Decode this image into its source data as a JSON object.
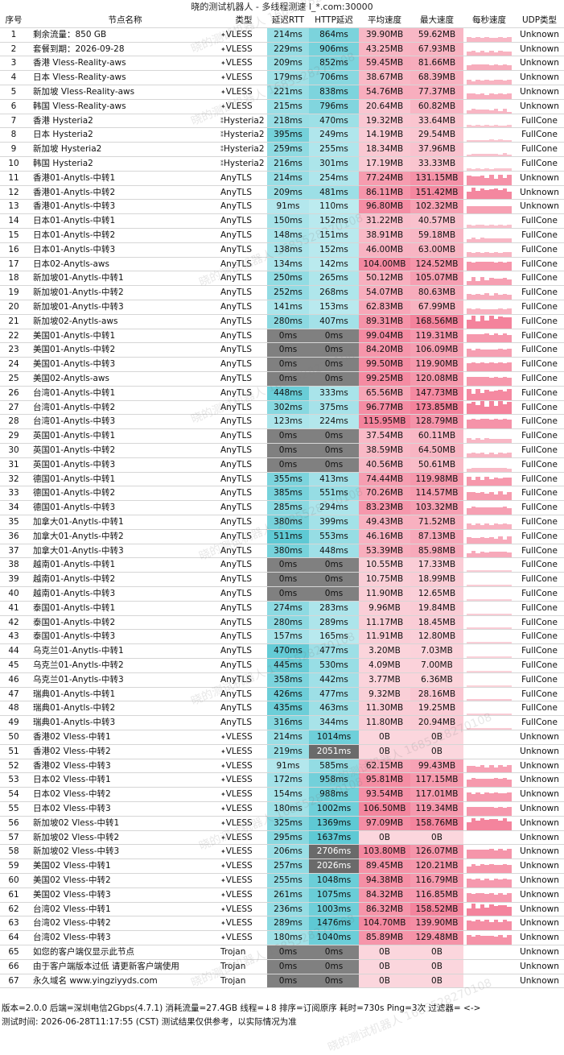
{
  "title": "晓的测试机器人 - 多线程测速 l_*.com:30000",
  "headers": [
    "序号",
    "节点名称",
    "类型",
    "延迟RTT",
    "HTTP延迟",
    "平均速度",
    "最大速度",
    "每秒速度",
    "UDP类型"
  ],
  "rows": [
    [
      "1",
      "剩余流量：850 GB",
      "VLESS",
      "214ms",
      "864ms",
      "39.90MB",
      "59.62MB",
      "Unknown"
    ],
    [
      "2",
      "套餐到期：2026-09-28",
      "VLESS",
      "229ms",
      "906ms",
      "43.25MB",
      "67.93MB",
      "Unknown"
    ],
    [
      "3",
      "香港 Vless-Reality-aws",
      "VLESS",
      "209ms",
      "852ms",
      "59.45MB",
      "81.66MB",
      "Unknown"
    ],
    [
      "4",
      "日本 Vless-Reality-aws",
      "VLESS",
      "179ms",
      "706ms",
      "38.67MB",
      "68.39MB",
      "Unknown"
    ],
    [
      "5",
      "新加坡 Vless-Reality-aws",
      "VLESS",
      "221ms",
      "838ms",
      "54.76MB",
      "77.37MB",
      "Unknown"
    ],
    [
      "6",
      "韩国 Vless-Reality-aws",
      "VLESS",
      "215ms",
      "796ms",
      "20.64MB",
      "60.82MB",
      "Unknown"
    ],
    [
      "7",
      "香港 Hysteria2",
      "Hysteria2",
      "218ms",
      "470ms",
      "19.32MB",
      "33.64MB",
      "FullCone"
    ],
    [
      "8",
      "日本 Hysteria2",
      "Hysteria2",
      "395ms",
      "249ms",
      "14.19MB",
      "29.54MB",
      "FullCone"
    ],
    [
      "9",
      "新加坡 Hysteria2",
      "Hysteria2",
      "259ms",
      "255ms",
      "18.34MB",
      "37.96MB",
      "FullCone"
    ],
    [
      "10",
      "韩国 Hysteria2",
      "Hysteria2",
      "216ms",
      "301ms",
      "17.19MB",
      "33.33MB",
      "FullCone"
    ],
    [
      "11",
      "香港01-Anytls-中转1",
      "AnyTLS",
      "214ms",
      "254ms",
      "77.24MB",
      "131.15MB",
      "Unknown"
    ],
    [
      "12",
      "香港01-Anytls-中转2",
      "AnyTLS",
      "209ms",
      "481ms",
      "86.11MB",
      "151.42MB",
      "Unknown"
    ],
    [
      "13",
      "香港01-Anytls-中转3",
      "AnyTLS",
      "91ms",
      "110ms",
      "96.80MB",
      "102.32MB",
      "Unknown"
    ],
    [
      "14",
      "日本01-Anytls-中转1",
      "AnyTLS",
      "150ms",
      "152ms",
      "31.22MB",
      "40.57MB",
      "FullCone"
    ],
    [
      "15",
      "日本01-Anytls-中转2",
      "AnyTLS",
      "148ms",
      "151ms",
      "38.91MB",
      "59.18MB",
      "FullCone"
    ],
    [
      "16",
      "日本01-Anytls-中转3",
      "AnyTLS",
      "138ms",
      "152ms",
      "46.00MB",
      "63.00MB",
      "FullCone"
    ],
    [
      "17",
      "日本02-Anytls-aws",
      "AnyTLS",
      "134ms",
      "142ms",
      "104.00MB",
      "124.52MB",
      "FullCone"
    ],
    [
      "18",
      "新加坡01-Anytls-中转1",
      "AnyTLS",
      "250ms",
      "265ms",
      "50.12MB",
      "105.07MB",
      "FullCone"
    ],
    [
      "19",
      "新加坡01-Anytls-中转2",
      "AnyTLS",
      "252ms",
      "268ms",
      "54.07MB",
      "80.63MB",
      "FullCone"
    ],
    [
      "20",
      "新加坡01-Anytls-中转3",
      "AnyTLS",
      "141ms",
      "153ms",
      "62.83MB",
      "67.99MB",
      "FullCone"
    ],
    [
      "21",
      "新加坡02-Anytls-aws",
      "AnyTLS",
      "280ms",
      "407ms",
      "89.31MB",
      "168.56MB",
      "FullCone"
    ],
    [
      "22",
      "美国01-Anytls-中转1",
      "AnyTLS",
      "0ms",
      "0ms",
      "99.04MB",
      "119.31MB",
      "FullCone"
    ],
    [
      "23",
      "美国01-Anytls-中转2",
      "AnyTLS",
      "0ms",
      "0ms",
      "84.20MB",
      "106.09MB",
      "FullCone"
    ],
    [
      "24",
      "美国01-Anytls-中转3",
      "AnyTLS",
      "0ms",
      "0ms",
      "99.50MB",
      "119.90MB",
      "FullCone"
    ],
    [
      "25",
      "美国02-Anytls-aws",
      "AnyTLS",
      "0ms",
      "0ms",
      "99.25MB",
      "120.08MB",
      "FullCone"
    ],
    [
      "26",
      "台湾01-Anytls-中转1",
      "AnyTLS",
      "448ms",
      "333ms",
      "65.56MB",
      "147.73MB",
      "FullCone"
    ],
    [
      "27",
      "台湾01-Anytls-中转2",
      "AnyTLS",
      "302ms",
      "375ms",
      "96.77MB",
      "173.85MB",
      "FullCone"
    ],
    [
      "28",
      "台湾01-Anytls-中转3",
      "AnyTLS",
      "123ms",
      "224ms",
      "115.95MB",
      "128.79MB",
      "FullCone"
    ],
    [
      "29",
      "英国01-Anytls-中转1",
      "AnyTLS",
      "0ms",
      "0ms",
      "37.54MB",
      "60.11MB",
      "FullCone"
    ],
    [
      "30",
      "英国01-Anytls-中转2",
      "AnyTLS",
      "0ms",
      "0ms",
      "38.59MB",
      "64.50MB",
      "FullCone"
    ],
    [
      "31",
      "英国01-Anytls-中转3",
      "AnyTLS",
      "0ms",
      "0ms",
      "40.56MB",
      "50.61MB",
      "FullCone"
    ],
    [
      "32",
      "德国01-Anytls-中转1",
      "AnyTLS",
      "355ms",
      "413ms",
      "74.44MB",
      "119.98MB",
      "FullCone"
    ],
    [
      "33",
      "德国01-Anytls-中转2",
      "AnyTLS",
      "385ms",
      "551ms",
      "70.26MB",
      "114.57MB",
      "FullCone"
    ],
    [
      "34",
      "德国01-Anytls-中转3",
      "AnyTLS",
      "285ms",
      "294ms",
      "83.23MB",
      "103.32MB",
      "FullCone"
    ],
    [
      "35",
      "加拿大01-Anytls-中转1",
      "AnyTLS",
      "380ms",
      "399ms",
      "49.43MB",
      "71.52MB",
      "FullCone"
    ],
    [
      "36",
      "加拿大01-Anytls-中转2",
      "AnyTLS",
      "511ms",
      "553ms",
      "46.16MB",
      "87.13MB",
      "FullCone"
    ],
    [
      "37",
      "加拿大01-Anytls-中转3",
      "AnyTLS",
      "380ms",
      "448ms",
      "53.39MB",
      "85.98MB",
      "FullCone"
    ],
    [
      "38",
      "越南01-Anytls-中转1",
      "AnyTLS",
      "0ms",
      "0ms",
      "10.55MB",
      "17.33MB",
      "FullCone"
    ],
    [
      "39",
      "越南01-Anytls-中转2",
      "AnyTLS",
      "0ms",
      "0ms",
      "10.75MB",
      "18.99MB",
      "FullCone"
    ],
    [
      "40",
      "越南01-Anytls-中转3",
      "AnyTLS",
      "0ms",
      "0ms",
      "11.90MB",
      "12.65MB",
      "FullCone"
    ],
    [
      "41",
      "泰国01-Anytls-中转1",
      "AnyTLS",
      "274ms",
      "283ms",
      "9.96MB",
      "19.84MB",
      "FullCone"
    ],
    [
      "42",
      "泰国01-Anytls-中转2",
      "AnyTLS",
      "280ms",
      "289ms",
      "11.17MB",
      "18.45MB",
      "FullCone"
    ],
    [
      "43",
      "泰国01-Anytls-中转3",
      "AnyTLS",
      "157ms",
      "165ms",
      "11.91MB",
      "12.80MB",
      "FullCone"
    ],
    [
      "44",
      "乌克兰01-Anytls-中转1",
      "AnyTLS",
      "470ms",
      "477ms",
      "3.20MB",
      "7.03MB",
      "FullCone"
    ],
    [
      "45",
      "乌克兰01-Anytls-中转2",
      "AnyTLS",
      "445ms",
      "530ms",
      "4.09MB",
      "7.00MB",
      "FullCone"
    ],
    [
      "46",
      "乌克兰01-Anytls-中转3",
      "AnyTLS",
      "358ms",
      "442ms",
      "3.77MB",
      "6.36MB",
      "FullCone"
    ],
    [
      "47",
      "瑞典01-Anytls-中转1",
      "AnyTLS",
      "426ms",
      "477ms",
      "9.32MB",
      "28.16MB",
      "FullCone"
    ],
    [
      "48",
      "瑞典01-Anytls-中转2",
      "AnyTLS",
      "435ms",
      "463ms",
      "11.30MB",
      "19.25MB",
      "FullCone"
    ],
    [
      "49",
      "瑞典01-Anytls-中转3",
      "AnyTLS",
      "316ms",
      "344ms",
      "11.80MB",
      "20.94MB",
      "FullCone"
    ],
    [
      "50",
      "香港02 Vless-中转1",
      "VLESS",
      "214ms",
      "1014ms",
      "0B",
      "0B",
      "Unknown"
    ],
    [
      "51",
      "香港02 Vless-中转2",
      "VLESS",
      "219ms",
      "2051ms",
      "0B",
      "0B",
      "Unknown"
    ],
    [
      "52",
      "香港02 Vless-中转3",
      "VLESS",
      "91ms",
      "585ms",
      "62.15MB",
      "99.43MB",
      "Unknown"
    ],
    [
      "53",
      "日本02 Vless-中转1",
      "VLESS",
      "172ms",
      "958ms",
      "95.81MB",
      "117.15MB",
      "Unknown"
    ],
    [
      "54",
      "日本02 Vless-中转2",
      "VLESS",
      "154ms",
      "988ms",
      "93.54MB",
      "117.01MB",
      "Unknown"
    ],
    [
      "55",
      "日本02 Vless-中转3",
      "VLESS",
      "180ms",
      "1002ms",
      "106.50MB",
      "119.34MB",
      "Unknown"
    ],
    [
      "56",
      "新加坡02 Vless-中转1",
      "VLESS",
      "325ms",
      "1369ms",
      "97.09MB",
      "158.76MB",
      "Unknown"
    ],
    [
      "57",
      "新加坡02 Vless-中转2",
      "VLESS",
      "295ms",
      "1637ms",
      "0B",
      "0B",
      "Unknown"
    ],
    [
      "58",
      "新加坡02 Vless-中转3",
      "VLESS",
      "206ms",
      "2706ms",
      "103.80MB",
      "126.07MB",
      "Unknown"
    ],
    [
      "59",
      "美国02 Vless-中转1",
      "VLESS",
      "257ms",
      "2026ms",
      "89.45MB",
      "120.21MB",
      "Unknown"
    ],
    [
      "60",
      "美国02 Vless-中转2",
      "VLESS",
      "255ms",
      "1048ms",
      "94.38MB",
      "116.79MB",
      "Unknown"
    ],
    [
      "61",
      "美国02 Vless-中转3",
      "VLESS",
      "261ms",
      "1075ms",
      "84.32MB",
      "116.85MB",
      "Unknown"
    ],
    [
      "62",
      "台湾02 Vless-中转1",
      "VLESS",
      "236ms",
      "1003ms",
      "86.32MB",
      "158.52MB",
      "Unknown"
    ],
    [
      "63",
      "台湾02 Vless-中转2",
      "VLESS",
      "289ms",
      "1476ms",
      "104.70MB",
      "139.90MB",
      "Unknown"
    ],
    [
      "64",
      "台湾02 Vless-中转3",
      "VLESS",
      "180ms",
      "1040ms",
      "85.89MB",
      "129.48MB",
      "Unknown"
    ],
    [
      "65",
      "如您的客户端仅显示此节点",
      "Trojan",
      "0ms",
      "0ms",
      "0B",
      "0B",
      "Unknown"
    ],
    [
      "66",
      "由于客户端版本过低 请更新客户端使用",
      "Trojan",
      "0ms",
      "0ms",
      "0B",
      "0B",
      "Unknown"
    ],
    [
      "67",
      "永久域名 www.yingziyyds.com",
      "Trojan",
      "0ms",
      "0ms",
      "0B",
      "0B",
      "Unknown"
    ]
  ],
  "footer": {
    "line1": "版本=2.0.0  后端=深圳电信2Gbps(4.7.1)  消耗流量=27.4GB  线程=↓8  排序=订阅原序  耗时=730s  Ping=3次  过滤器= <->",
    "line2": "测试时间: 2026-06-28T11:17:55 (CST)  测试结果仅供参考，以实际情况为准"
  },
  "watermark": "晓的测试机器人 1685528270108",
  "colors": {
    "header_bg": "#ffffff",
    "ping_zero": "#808080",
    "http_dark": "#6a6a6a",
    "avg_low": "#fbd6dd",
    "avg_high": "#f4839c",
    "teal_light": "#c6eef2",
    "teal_dark": "#5ec9d4"
  }
}
